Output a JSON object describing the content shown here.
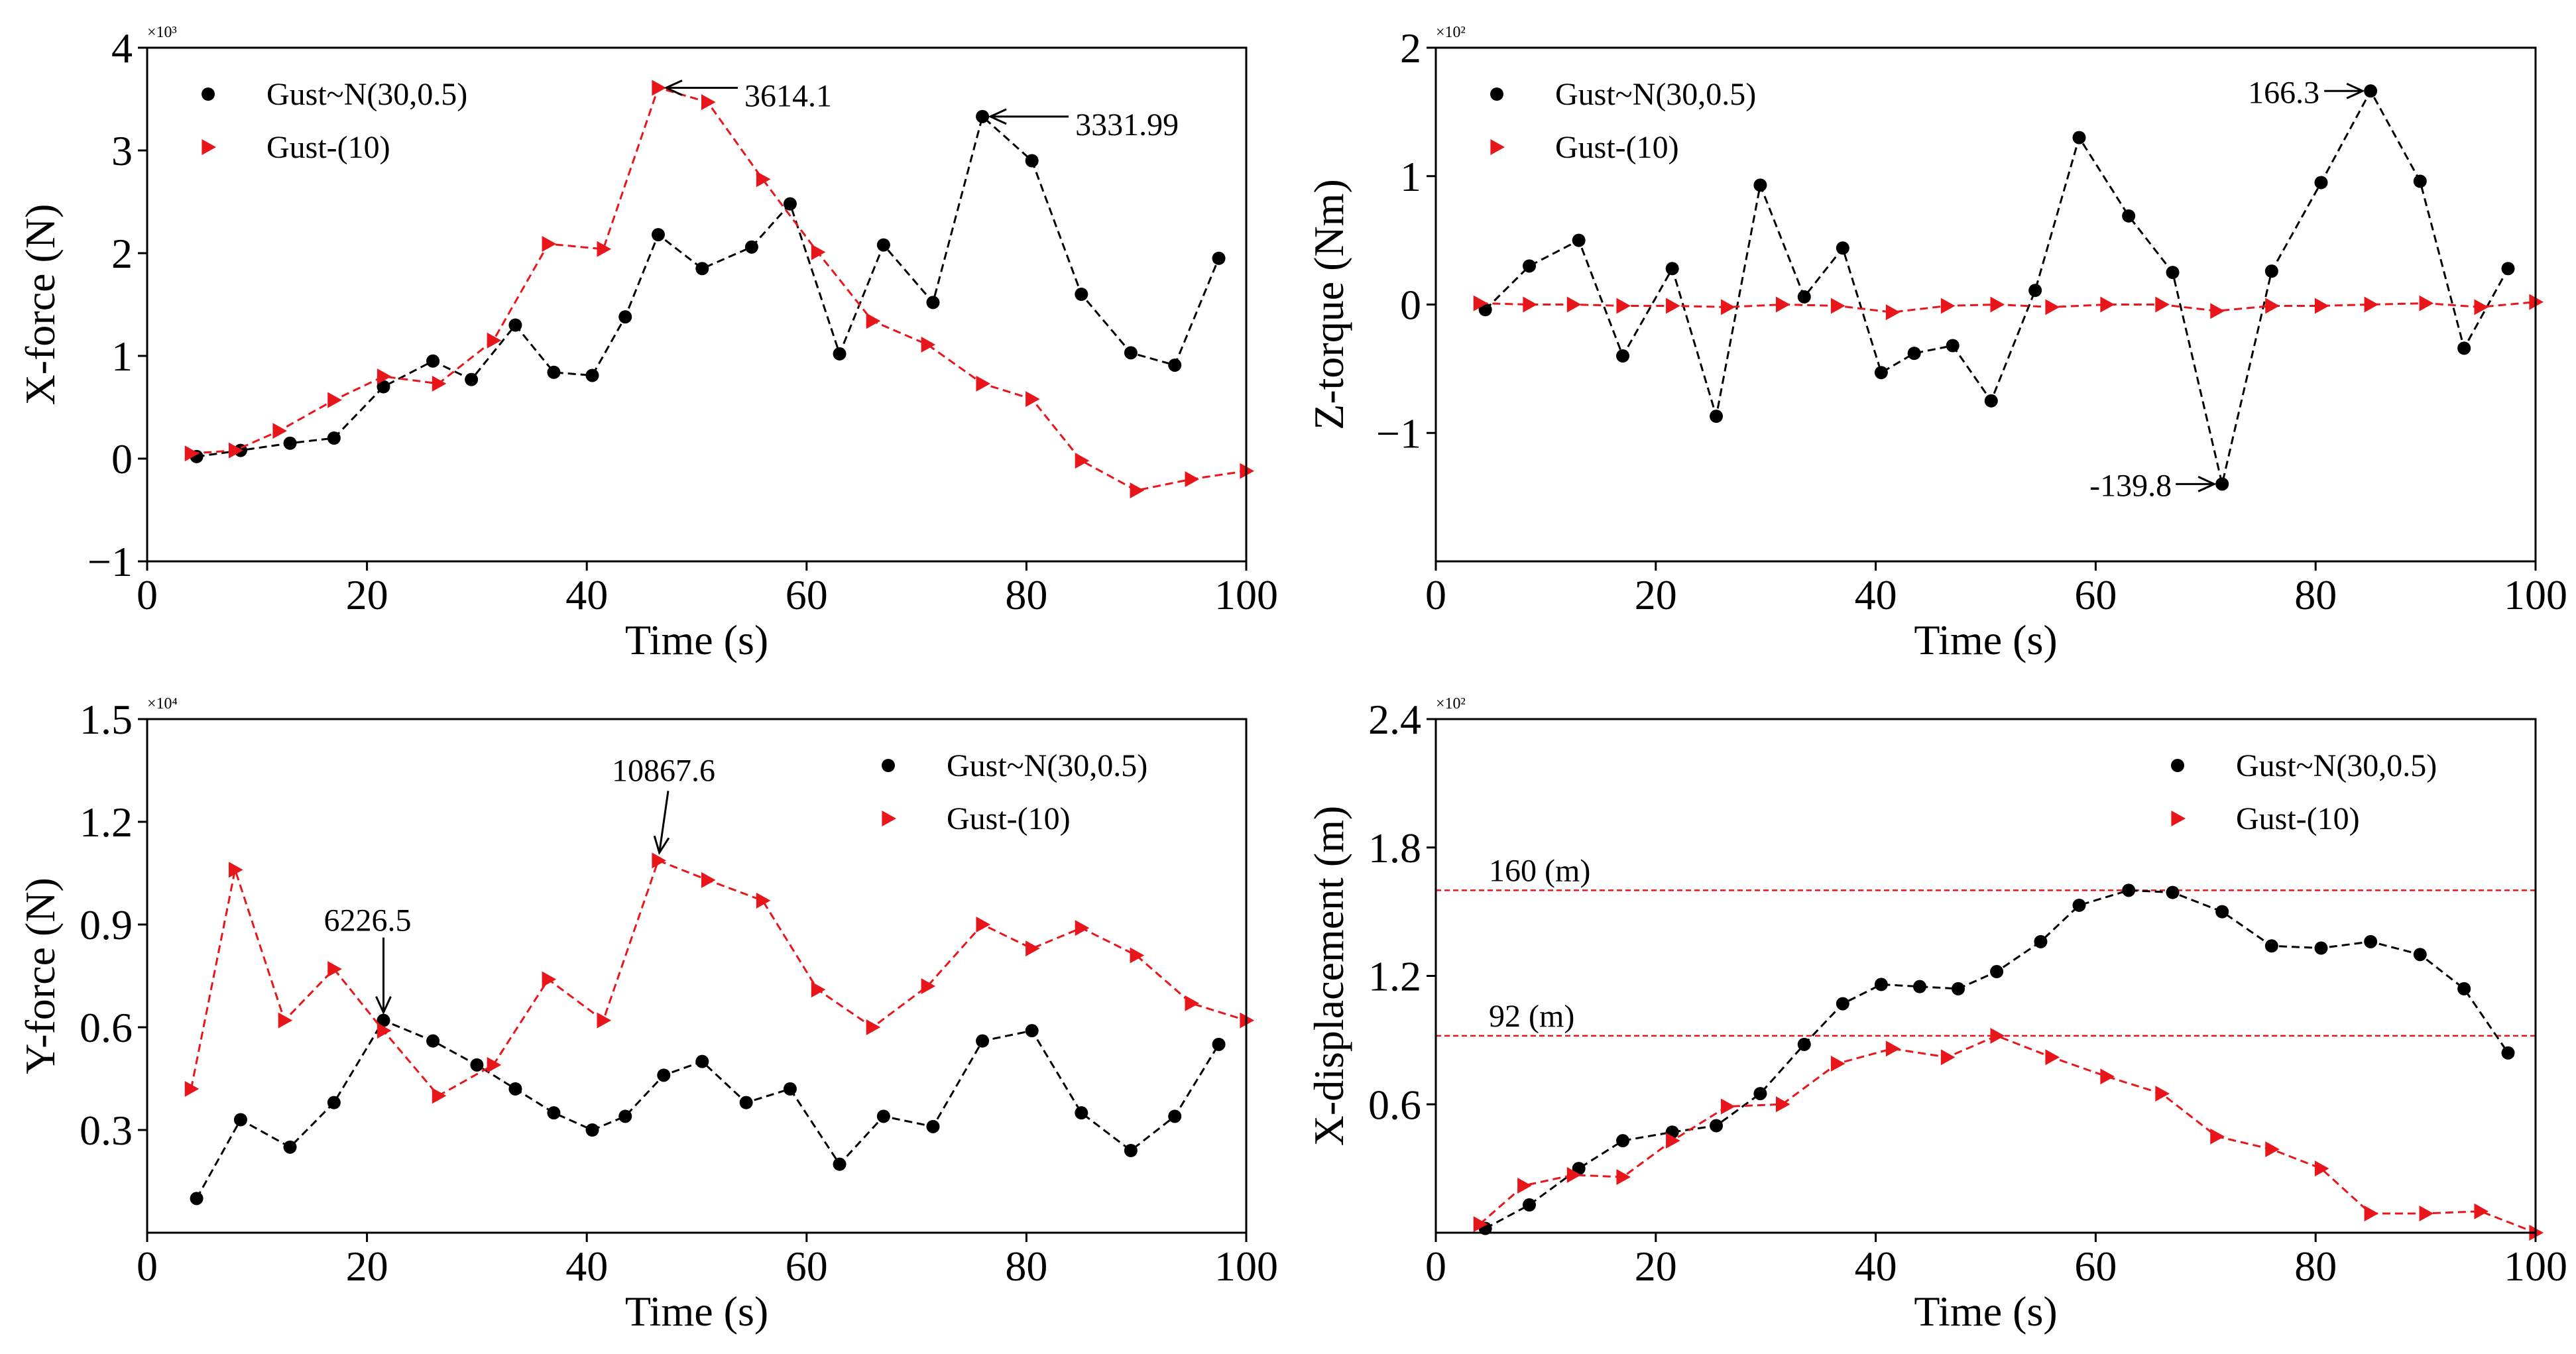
{
  "chart_data": [
    {
      "type": "line",
      "panel": "top-left",
      "xlabel": "Time (s)",
      "ylabel": "X-force (N)",
      "xlim": [
        0,
        100
      ],
      "ylim": [
        -1,
        4
      ],
      "xticks": [
        0,
        20,
        40,
        60,
        80,
        100
      ],
      "yticks": [
        -1,
        0,
        1,
        2,
        3,
        4
      ],
      "xtick_labels": [
        "0",
        "20",
        "40",
        "60",
        "80",
        "100"
      ],
      "ytick_labels": [
        "−1",
        "0",
        "1",
        "2",
        "3",
        "4"
      ],
      "sci_label": "×10³",
      "legend_loc": "top-left",
      "series": [
        {
          "name": "Gust~N(30,0.5)",
          "color": "#000000",
          "marker": "circle",
          "x": [
            4.5,
            8.5,
            13,
            17,
            21.5,
            26,
            29.5,
            33.5,
            37,
            40.5,
            43.5,
            46.5,
            50.5,
            55,
            58.5,
            63,
            67,
            71.5,
            76,
            80.5,
            85,
            89.5,
            93.5,
            97.5
          ],
          "y": [
            0.02,
            0.08,
            0.15,
            0.2,
            0.7,
            0.95,
            0.77,
            1.3,
            0.84,
            0.81,
            1.38,
            2.18,
            1.85,
            2.06,
            2.48,
            1.02,
            2.08,
            1.52,
            3.33,
            2.9,
            1.6,
            1.03,
            0.91,
            1.95
          ]
        },
        {
          "name": "Gust-(10)",
          "color": "#e8161b",
          "marker": "triangle-right",
          "x": [
            4,
            8,
            12,
            17,
            21.5,
            26.5,
            31.5,
            36.5,
            41.5,
            46.5,
            51,
            56,
            61,
            66,
            71,
            76,
            80.5,
            85,
            90,
            95,
            100
          ],
          "y": [
            0.05,
            0.08,
            0.27,
            0.57,
            0.8,
            0.73,
            1.15,
            2.09,
            2.04,
            3.61,
            3.47,
            2.72,
            2.01,
            1.34,
            1.11,
            0.73,
            0.58,
            -0.02,
            -0.31,
            -0.2,
            -0.12
          ]
        }
      ],
      "annotations": [
        {
          "text": "3614.1",
          "x": 46.5,
          "y": 3.61
        },
        {
          "text": "3331.99",
          "x": 76,
          "y": 3.33
        }
      ]
    },
    {
      "type": "line",
      "panel": "top-right",
      "xlabel": "Time (s)",
      "ylabel": "Z-torque (Nm)",
      "xlim": [
        0,
        100
      ],
      "ylim": [
        -2,
        2
      ],
      "xticks": [
        0,
        20,
        40,
        60,
        80,
        100
      ],
      "yticks": [
        -1,
        0,
        1,
        2
      ],
      "xtick_labels": [
        "0",
        "20",
        "40",
        "60",
        "80",
        "100"
      ],
      "ytick_labels": [
        "−1",
        "0",
        "1",
        "2"
      ],
      "sci_label": "×10²",
      "legend_loc": "top-left",
      "series": [
        {
          "name": "Gust~N(30,0.5)",
          "color": "#000000",
          "marker": "circle",
          "x": [
            4.5,
            8.5,
            13,
            17,
            21.5,
            25.5,
            29.5,
            33.5,
            37,
            40.5,
            43.5,
            47,
            50.5,
            54.5,
            58.5,
            63,
            67,
            71.5,
            76,
            80.5,
            85,
            89.5,
            93.5,
            97.5
          ],
          "y": [
            -0.04,
            0.3,
            0.5,
            -0.4,
            0.28,
            -0.87,
            0.93,
            0.06,
            0.44,
            -0.53,
            -0.38,
            -0.32,
            -0.75,
            0.11,
            1.3,
            0.69,
            0.25,
            -1.398,
            0.26,
            0.95,
            1.663,
            0.96,
            -0.34,
            0.28
          ]
        },
        {
          "name": "Gust-(10)",
          "color": "#e8161b",
          "marker": "triangle-right",
          "x": [
            4,
            8.5,
            12.5,
            17,
            21.5,
            26.5,
            31.5,
            36.5,
            41.5,
            46.5,
            51,
            56,
            61,
            66,
            71,
            76,
            80.5,
            85,
            90,
            95,
            100
          ],
          "y": [
            0.01,
            0.0,
            0.0,
            -0.01,
            -0.01,
            -0.02,
            0.0,
            -0.01,
            -0.06,
            -0.01,
            0.0,
            -0.02,
            0.0,
            0.0,
            -0.05,
            -0.01,
            -0.01,
            0.0,
            0.01,
            -0.02,
            0.02
          ]
        }
      ],
      "annotations": [
        {
          "text": "166.3",
          "x": 85,
          "y": 1.663
        },
        {
          "text": "-139.8",
          "x": 71.5,
          "y": -1.398
        }
      ]
    },
    {
      "type": "line",
      "panel": "bottom-left",
      "xlabel": "Time (s)",
      "ylabel": "Y-force (N)",
      "xlim": [
        0,
        100
      ],
      "ylim": [
        0,
        1.5
      ],
      "xticks": [
        0,
        20,
        40,
        60,
        80,
        100
      ],
      "yticks": [
        0.3,
        0.6,
        0.9,
        1.2,
        1.5
      ],
      "xtick_labels": [
        "0",
        "20",
        "40",
        "60",
        "80",
        "100"
      ],
      "ytick_labels": [
        "0.3",
        "0.6",
        "0.9",
        "1.2",
        "1.5"
      ],
      "sci_label": "×10⁴",
      "legend_loc": "top-right",
      "series": [
        {
          "name": "Gust~N(30,0.5)",
          "color": "#000000",
          "marker": "circle",
          "x": [
            4.5,
            8.5,
            13,
            17,
            21.5,
            26,
            30,
            33.5,
            37,
            40.5,
            43.5,
            47,
            50.5,
            54.5,
            58.5,
            63,
            67,
            71.5,
            76,
            80.5,
            85,
            89.5,
            93.5,
            97.5
          ],
          "y": [
            0.1,
            0.33,
            0.25,
            0.38,
            0.62,
            0.56,
            0.49,
            0.42,
            0.35,
            0.3,
            0.34,
            0.46,
            0.5,
            0.38,
            0.42,
            0.2,
            0.34,
            0.31,
            0.56,
            0.59,
            0.35,
            0.24,
            0.34,
            0.55
          ]
        },
        {
          "name": "Gust-(10)",
          "color": "#e8161b",
          "marker": "triangle-right",
          "x": [
            4,
            8,
            12.5,
            17,
            21.5,
            26.5,
            31.5,
            36.5,
            41.5,
            46.5,
            51,
            56,
            61,
            66,
            71,
            76,
            80.5,
            85,
            90,
            95,
            100
          ],
          "y": [
            0.42,
            1.06,
            0.62,
            0.77,
            0.59,
            0.4,
            0.49,
            0.74,
            0.62,
            1.087,
            1.03,
            0.97,
            0.71,
            0.6,
            0.72,
            0.9,
            0.83,
            0.89,
            0.81,
            0.67,
            0.62
          ]
        }
      ],
      "annotations": [
        {
          "text": "10867.6",
          "x": 46.5,
          "y": 1.087
        },
        {
          "text": "6226.5",
          "x": 21.5,
          "y": 0.62
        }
      ]
    },
    {
      "type": "line",
      "panel": "bottom-right",
      "xlabel": "Time (s)",
      "ylabel": "X-displacement (m)",
      "xlim": [
        0,
        100
      ],
      "ylim": [
        0,
        2.4
      ],
      "xticks": [
        0,
        20,
        40,
        60,
        80,
        100
      ],
      "yticks": [
        0.6,
        1.2,
        1.8,
        2.4
      ],
      "xtick_labels": [
        "0",
        "20",
        "40",
        "60",
        "80",
        "100"
      ],
      "ytick_labels": [
        "0.6",
        "1.2",
        "1.8",
        "2.4"
      ],
      "sci_label": "×10²",
      "legend_loc": "top-right",
      "series": [
        {
          "name": "Gust~N(30,0.5)",
          "color": "#000000",
          "marker": "circle",
          "x": [
            4.5,
            8.5,
            13,
            17,
            21.5,
            25.5,
            29.5,
            33.5,
            37,
            40.5,
            44,
            47.5,
            51,
            55,
            58.5,
            63,
            67,
            71.5,
            76,
            80.5,
            85,
            89.5,
            93.5,
            97.5
          ],
          "y": [
            0.02,
            0.13,
            0.3,
            0.43,
            0.47,
            0.5,
            0.65,
            0.88,
            1.07,
            1.16,
            1.15,
            1.14,
            1.22,
            1.36,
            1.53,
            1.6,
            1.59,
            1.5,
            1.34,
            1.33,
            1.36,
            1.3,
            1.14,
            0.84
          ]
        },
        {
          "name": "Gust-(10)",
          "color": "#e8161b",
          "marker": "triangle-right",
          "x": [
            4,
            8,
            12.5,
            17,
            21.5,
            26.5,
            31.5,
            36.5,
            41.5,
            46.5,
            51,
            56,
            61,
            66,
            71,
            76,
            80.5,
            85,
            90,
            95,
            100
          ],
          "y": [
            0.04,
            0.22,
            0.27,
            0.26,
            0.43,
            0.59,
            0.6,
            0.79,
            0.86,
            0.82,
            0.92,
            0.82,
            0.73,
            0.65,
            0.45,
            0.39,
            0.3,
            0.09,
            0.09,
            0.1,
            0.0
          ]
        }
      ],
      "reference_lines": [
        {
          "label": "160 (m)",
          "y": 1.6
        },
        {
          "label": "92 (m)",
          "y": 0.92
        }
      ]
    }
  ]
}
